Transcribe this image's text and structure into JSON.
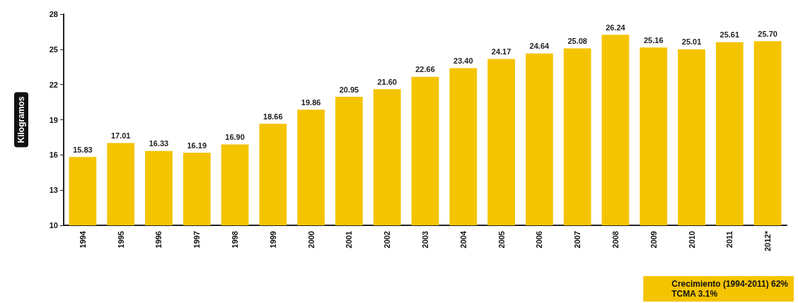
{
  "chart_data": {
    "type": "bar",
    "ylabel": "Kilogramos",
    "categories": [
      "1994",
      "1995",
      "1996",
      "1997",
      "1998",
      "1999",
      "2000",
      "2001",
      "2002",
      "2003",
      "2004",
      "2005",
      "2006",
      "2007",
      "2008",
      "2009",
      "2010",
      "2011",
      "2012*"
    ],
    "values": [
      15.83,
      17.01,
      16.33,
      16.19,
      16.9,
      18.66,
      19.86,
      20.95,
      21.6,
      22.66,
      23.4,
      24.17,
      24.64,
      25.08,
      26.24,
      25.16,
      25.01,
      25.61,
      25.7
    ],
    "value_labels": [
      "15.83",
      "17.01",
      "16.33",
      "16.19",
      "16.90",
      "18.66",
      "19.86",
      "20.95",
      "21.60",
      "22.66",
      "23.40",
      "24.17",
      "24.64",
      "25.08",
      "26.24",
      "25.16",
      "25.01",
      "25.61",
      "25.70"
    ],
    "color": "#f5c400",
    "ylim": [
      10,
      28
    ],
    "yticks": [
      10,
      13,
      16,
      19,
      22,
      25,
      28
    ],
    "grid": false,
    "annotations": [
      "Crecimiento (1994-2011) 62%",
      "TCMA 3.1%"
    ]
  }
}
